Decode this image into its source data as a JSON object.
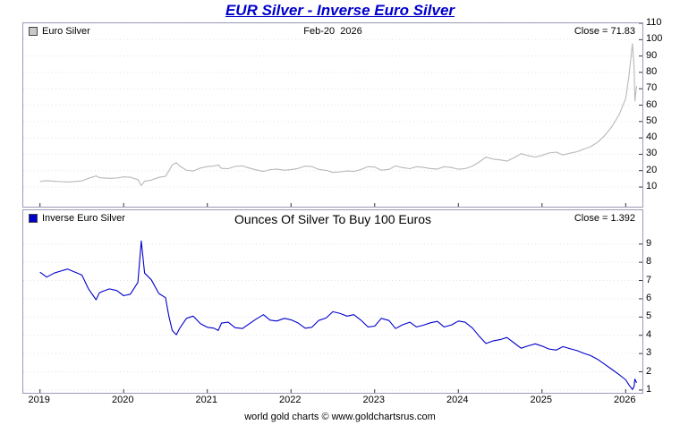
{
  "page": {
    "title": "EUR Silver - Inverse Euro Silver",
    "footer": "world gold charts © www.goldchartsrus.com"
  },
  "colors": {
    "title_blue": "#0000cc",
    "euro_silver_line": "#b8b8b8",
    "inverse_line": "#0000cc",
    "panel_border": "#9a9ab8",
    "grid": "#e3e3e3",
    "tick": "#333333"
  },
  "chart_data": [
    {
      "type": "line",
      "name": "Euro Silver",
      "legend": "Euro Silver",
      "date_label": "Feb-20  2026",
      "close_label": "Close = 71.83",
      "close": 71.83,
      "line_color": "#b8b8b8",
      "swatch_color": "#c8c8c8",
      "x_range": [
        2018.8,
        2026.2
      ],
      "y_range": [
        -2,
        110
      ],
      "y_ticks": [
        10,
        20,
        30,
        40,
        50,
        60,
        70,
        80,
        90,
        100,
        110
      ],
      "x_ticks": [
        2019,
        2020,
        2021,
        2022,
        2023,
        2024,
        2025,
        2026
      ],
      "x": [
        2019.0,
        2019.08,
        2019.17,
        2019.25,
        2019.33,
        2019.42,
        2019.5,
        2019.58,
        2019.67,
        2019.71,
        2019.75,
        2019.83,
        2019.92,
        2020.0,
        2020.08,
        2020.17,
        2020.21,
        2020.25,
        2020.33,
        2020.42,
        2020.5,
        2020.54,
        2020.58,
        2020.63,
        2020.67,
        2020.75,
        2020.83,
        2020.92,
        2021.0,
        2021.08,
        2021.13,
        2021.17,
        2021.25,
        2021.33,
        2021.42,
        2021.5,
        2021.58,
        2021.67,
        2021.75,
        2021.83,
        2021.92,
        2022.0,
        2022.08,
        2022.17,
        2022.25,
        2022.33,
        2022.42,
        2022.5,
        2022.58,
        2022.67,
        2022.75,
        2022.83,
        2022.92,
        2023.0,
        2023.08,
        2023.17,
        2023.25,
        2023.33,
        2023.42,
        2023.5,
        2023.58,
        2023.67,
        2023.75,
        2023.83,
        2023.92,
        2024.0,
        2024.08,
        2024.17,
        2024.25,
        2024.33,
        2024.42,
        2024.5,
        2024.58,
        2024.67,
        2024.75,
        2024.83,
        2024.92,
        2025.0,
        2025.08,
        2025.17,
        2025.25,
        2025.33,
        2025.42,
        2025.5,
        2025.58,
        2025.67,
        2025.75,
        2025.83,
        2025.92,
        2026.0,
        2026.04,
        2026.08,
        2026.1,
        2026.11,
        2026.13
      ],
      "y": [
        13.4,
        13.9,
        13.5,
        13.3,
        13.1,
        13.4,
        13.7,
        15.3,
        16.8,
        15.8,
        15.6,
        15.3,
        15.5,
        16.2,
        16.0,
        14.5,
        10.9,
        13.5,
        14.2,
        15.9,
        16.5,
        19.8,
        23.5,
        24.8,
        22.8,
        20.3,
        19.8,
        21.6,
        22.5,
        22.8,
        23.5,
        21.4,
        21.2,
        22.6,
        22.9,
        21.6,
        20.5,
        19.5,
        20.7,
        20.9,
        20.3,
        20.6,
        21.3,
        22.8,
        22.5,
        20.8,
        20.2,
        18.9,
        19.2,
        19.8,
        19.5,
        20.6,
        22.4,
        22.2,
        20.3,
        20.8,
        22.9,
        21.9,
        21.2,
        22.4,
        22.0,
        21.3,
        21.0,
        22.4,
        21.9,
        20.9,
        21.2,
        22.8,
        25.3,
        28.2,
        27.0,
        26.6,
        25.8,
        28.0,
        30.4,
        29.2,
        28.3,
        29.3,
        30.8,
        31.3,
        29.6,
        30.6,
        31.6,
        33.2,
        34.6,
        37.5,
        41.5,
        46.5,
        54.0,
        64.0,
        78.0,
        97.5,
        84.0,
        62.5,
        71.83
      ]
    },
    {
      "type": "line",
      "name": "Inverse Euro Silver",
      "legend": "Inverse Euro Silver",
      "center_title": "Ounces Of Silver To Buy 100 Euros",
      "close_label": "Close = 1.392",
      "close": 1.392,
      "line_color": "#0000cc",
      "swatch_color": "#0000cc",
      "x_range": [
        2018.8,
        2026.2
      ],
      "y_range": [
        0.85,
        10.85
      ],
      "y_ticks": [
        1,
        2,
        3,
        4,
        5,
        6,
        7,
        8,
        9
      ],
      "x_ticks": [
        2019,
        2020,
        2021,
        2022,
        2023,
        2024,
        2025,
        2026
      ],
      "x": [
        2019.0,
        2019.08,
        2019.17,
        2019.25,
        2019.33,
        2019.42,
        2019.5,
        2019.58,
        2019.67,
        2019.71,
        2019.75,
        2019.83,
        2019.92,
        2020.0,
        2020.08,
        2020.17,
        2020.21,
        2020.25,
        2020.33,
        2020.42,
        2020.5,
        2020.54,
        2020.58,
        2020.63,
        2020.67,
        2020.75,
        2020.83,
        2020.92,
        2021.0,
        2021.08,
        2021.13,
        2021.17,
        2021.25,
        2021.33,
        2021.42,
        2021.5,
        2021.58,
        2021.67,
        2021.75,
        2021.83,
        2021.92,
        2022.0,
        2022.08,
        2022.17,
        2022.25,
        2022.33,
        2022.42,
        2022.5,
        2022.58,
        2022.67,
        2022.75,
        2022.83,
        2022.92,
        2023.0,
        2023.08,
        2023.17,
        2023.25,
        2023.33,
        2023.42,
        2023.5,
        2023.58,
        2023.67,
        2023.75,
        2023.83,
        2023.92,
        2024.0,
        2024.08,
        2024.17,
        2024.25,
        2024.33,
        2024.42,
        2024.5,
        2024.58,
        2024.67,
        2024.75,
        2024.83,
        2024.92,
        2025.0,
        2025.08,
        2025.17,
        2025.25,
        2025.33,
        2025.42,
        2025.5,
        2025.58,
        2025.67,
        2025.75,
        2025.83,
        2025.92,
        2026.0,
        2026.04,
        2026.08,
        2026.1,
        2026.11,
        2026.13
      ],
      "y": [
        7.46,
        7.19,
        7.41,
        7.52,
        7.63,
        7.46,
        7.3,
        6.54,
        5.95,
        6.33,
        6.41,
        6.54,
        6.45,
        6.17,
        6.25,
        6.9,
        9.17,
        7.41,
        7.04,
        6.29,
        6.06,
        5.05,
        4.26,
        4.03,
        4.39,
        4.93,
        5.05,
        4.63,
        4.44,
        4.39,
        4.26,
        4.67,
        4.72,
        4.42,
        4.37,
        4.63,
        4.88,
        5.13,
        4.83,
        4.78,
        4.93,
        4.85,
        4.69,
        4.39,
        4.44,
        4.81,
        4.95,
        5.29,
        5.21,
        5.05,
        5.13,
        4.85,
        4.46,
        4.5,
        4.93,
        4.81,
        4.37,
        4.57,
        4.72,
        4.46,
        4.55,
        4.69,
        4.76,
        4.46,
        4.57,
        4.78,
        4.72,
        4.39,
        3.95,
        3.55,
        3.7,
        3.76,
        3.88,
        3.57,
        3.29,
        3.42,
        3.53,
        3.41,
        3.25,
        3.19,
        3.38,
        3.27,
        3.16,
        3.01,
        2.89,
        2.67,
        2.41,
        2.15,
        1.85,
        1.56,
        1.28,
        1.03,
        1.19,
        1.6,
        1.392
      ]
    }
  ]
}
